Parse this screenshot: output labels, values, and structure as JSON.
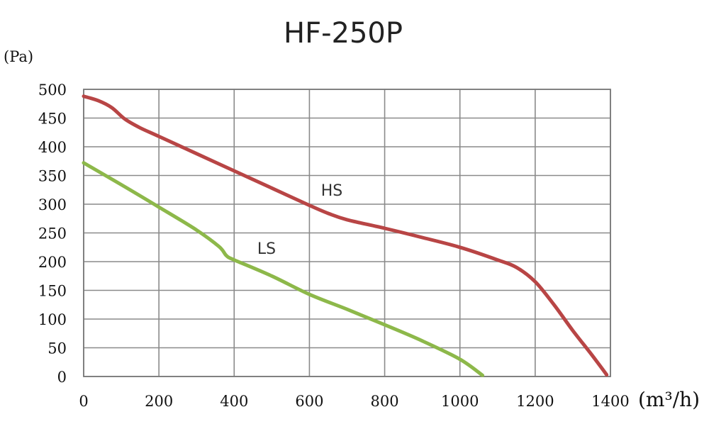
{
  "chart_data": {
    "type": "line",
    "title": "HF-250P",
    "ylabel": "(Pa)",
    "xlabel": "(m³/h)",
    "xlim": [
      0,
      1400
    ],
    "ylim": [
      0,
      500
    ],
    "x_ticks": [
      0,
      200,
      400,
      600,
      800,
      1000,
      1200,
      1400
    ],
    "y_ticks": [
      0,
      50,
      100,
      150,
      200,
      250,
      300,
      350,
      400,
      450,
      500
    ],
    "grid": true,
    "series": [
      {
        "name": "HS",
        "color": "#b84545",
        "points": [
          [
            0,
            488
          ],
          [
            40,
            480
          ],
          [
            75,
            468
          ],
          [
            110,
            448
          ],
          [
            150,
            433
          ],
          [
            200,
            418
          ],
          [
            300,
            388
          ],
          [
            400,
            358
          ],
          [
            500,
            328
          ],
          [
            600,
            298
          ],
          [
            650,
            284
          ],
          [
            700,
            273
          ],
          [
            800,
            258
          ],
          [
            900,
            242
          ],
          [
            1000,
            225
          ],
          [
            1100,
            203
          ],
          [
            1150,
            190
          ],
          [
            1200,
            165
          ],
          [
            1250,
            125
          ],
          [
            1300,
            80
          ],
          [
            1350,
            38
          ],
          [
            1390,
            3
          ]
        ]
      },
      {
        "name": "LS",
        "color": "#8db84a",
        "points": [
          [
            0,
            372
          ],
          [
            100,
            334
          ],
          [
            200,
            295
          ],
          [
            300,
            255
          ],
          [
            360,
            226
          ],
          [
            380,
            210
          ],
          [
            400,
            203
          ],
          [
            500,
            175
          ],
          [
            600,
            143
          ],
          [
            700,
            117
          ],
          [
            800,
            90
          ],
          [
            900,
            62
          ],
          [
            1000,
            30
          ],
          [
            1060,
            2
          ]
        ]
      }
    ]
  }
}
